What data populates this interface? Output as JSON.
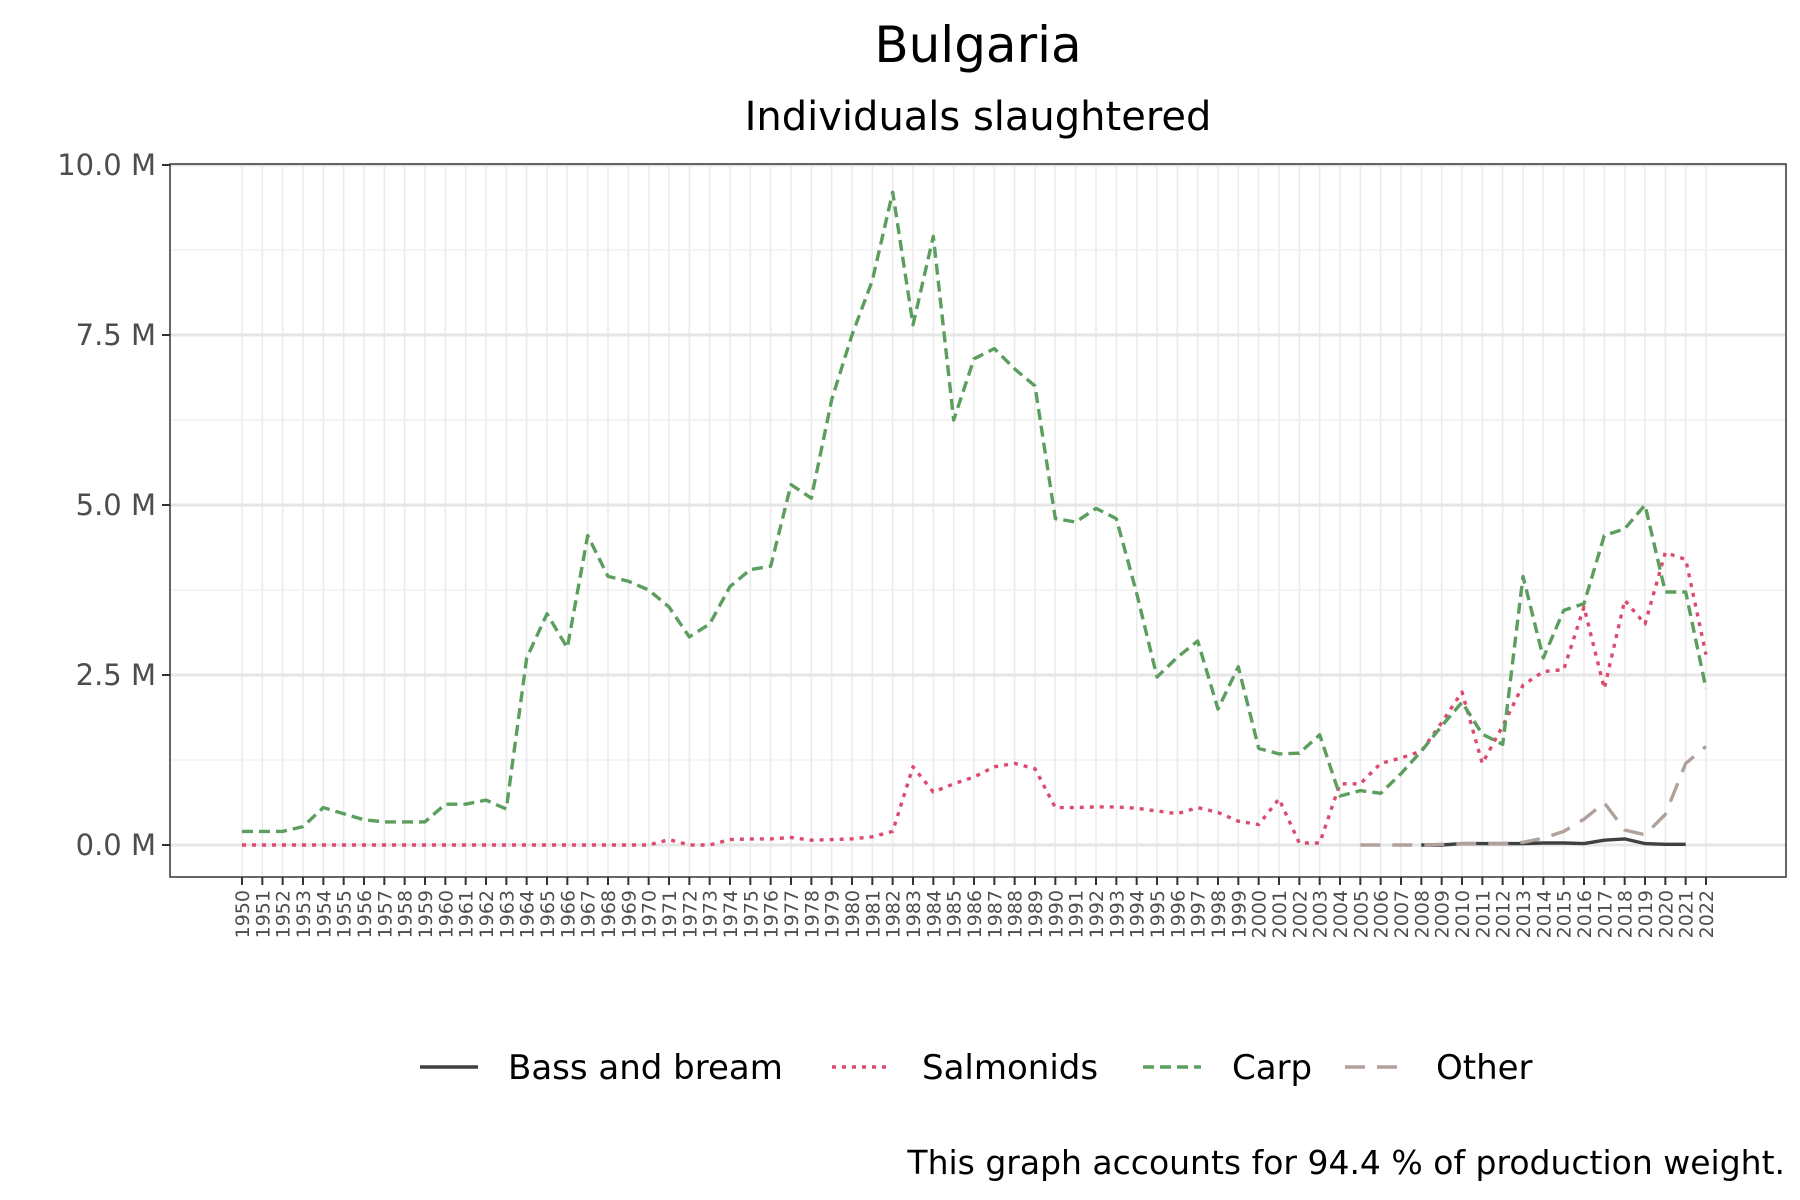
{
  "chart_data": {
    "type": "line",
    "title": "Bulgaria",
    "subtitle": "Individuals slaughtered",
    "caption": "This graph accounts for 94.4 % of production weight.",
    "ylim": [
      0,
      10000000
    ],
    "yticks": [
      0,
      2500000,
      5000000,
      7500000,
      10000000
    ],
    "ytick_labels": [
      "0.0 M",
      "2.5 M",
      "5.0 M",
      "7.5 M",
      "10.0 M"
    ],
    "x": [
      1950,
      1951,
      1952,
      1953,
      1954,
      1955,
      1956,
      1957,
      1958,
      1959,
      1960,
      1961,
      1962,
      1963,
      1964,
      1965,
      1966,
      1967,
      1968,
      1969,
      1970,
      1971,
      1972,
      1973,
      1974,
      1975,
      1976,
      1977,
      1978,
      1979,
      1980,
      1981,
      1982,
      1983,
      1984,
      1985,
      1986,
      1987,
      1988,
      1989,
      1990,
      1991,
      1992,
      1993,
      1994,
      1995,
      1996,
      1997,
      1998,
      1999,
      2000,
      2001,
      2002,
      2003,
      2004,
      2005,
      2006,
      2007,
      2008,
      2009,
      2010,
      2011,
      2012,
      2013,
      2014,
      2015,
      2016,
      2017,
      2018,
      2019,
      2020,
      2021,
      2022
    ],
    "legend_position": "bottom",
    "grid": true,
    "series": [
      {
        "name": "Bass and bream",
        "color": "#404040",
        "dash": "solid",
        "x": [
          2008,
          2009,
          2010,
          2011,
          2012,
          2013,
          2014,
          2015,
          2016,
          2017,
          2018,
          2019,
          2020,
          2021
        ],
        "values": [
          0,
          0,
          20000,
          20000,
          20000,
          20000,
          30000,
          30000,
          20000,
          70000,
          90000,
          20000,
          10000,
          10000
        ]
      },
      {
        "name": "Salmonids",
        "color": "#dc4b6e",
        "dash": "dotted",
        "x": [
          1950,
          1951,
          1952,
          1953,
          1954,
          1955,
          1956,
          1957,
          1958,
          1959,
          1960,
          1961,
          1962,
          1963,
          1964,
          1965,
          1966,
          1967,
          1968,
          1969,
          1970,
          1971,
          1972,
          1973,
          1974,
          1975,
          1976,
          1977,
          1978,
          1979,
          1980,
          1981,
          1982,
          1983,
          1984,
          1985,
          1986,
          1987,
          1988,
          1989,
          1990,
          1991,
          1992,
          1993,
          1994,
          1995,
          1996,
          1997,
          1998,
          1999,
          2000,
          2001,
          2002,
          2003,
          2004,
          2005,
          2006,
          2007,
          2008,
          2009,
          2010,
          2011,
          2012,
          2013,
          2014,
          2015,
          2016,
          2017,
          2018,
          2019,
          2020,
          2021,
          2022
        ],
        "values": [
          0,
          0,
          0,
          0,
          0,
          0,
          0,
          0,
          0,
          0,
          0,
          0,
          0,
          0,
          0,
          0,
          0,
          0,
          0,
          0,
          0,
          80000,
          0,
          0,
          80000,
          90000,
          90000,
          110000,
          70000,
          80000,
          90000,
          120000,
          200000,
          1150000,
          780000,
          900000,
          1000000,
          1150000,
          1200000,
          1120000,
          550000,
          550000,
          560000,
          560000,
          540000,
          500000,
          460000,
          550000,
          480000,
          350000,
          300000,
          680000,
          30000,
          30000,
          900000,
          900000,
          1200000,
          1280000,
          1380000,
          1800000,
          2250000,
          1200000,
          1750000,
          2350000,
          2550000,
          2580000,
          3500000,
          2300000,
          3600000,
          3250000,
          4300000,
          4200000,
          2800000
        ]
      },
      {
        "name": "Carp",
        "color": "#5b9e5e",
        "dash": "dashed",
        "x": [
          1950,
          1951,
          1952,
          1953,
          1954,
          1955,
          1956,
          1957,
          1958,
          1959,
          1960,
          1961,
          1962,
          1963,
          1964,
          1965,
          1966,
          1967,
          1968,
          1969,
          1970,
          1971,
          1972,
          1973,
          1974,
          1975,
          1976,
          1977,
          1978,
          1979,
          1980,
          1981,
          1982,
          1983,
          1984,
          1985,
          1986,
          1987,
          1988,
          1989,
          1990,
          1991,
          1992,
          1993,
          1994,
          1995,
          1996,
          1997,
          1998,
          1999,
          2000,
          2001,
          2002,
          2003,
          2004,
          2005,
          2006,
          2007,
          2008,
          2009,
          2010,
          2011,
          2012,
          2013,
          2014,
          2015,
          2016,
          2017,
          2018,
          2019,
          2020,
          2021,
          2022
        ],
        "values": [
          200000,
          200000,
          200000,
          270000,
          550000,
          460000,
          370000,
          340000,
          340000,
          340000,
          600000,
          600000,
          660000,
          530000,
          2750000,
          3400000,
          2900000,
          4550000,
          3950000,
          3880000,
          3750000,
          3500000,
          3060000,
          3250000,
          3800000,
          4050000,
          4100000,
          5300000,
          5100000,
          6550000,
          7500000,
          8300000,
          9600000,
          7650000,
          8950000,
          6250000,
          7150000,
          7300000,
          7000000,
          6750000,
          4800000,
          4750000,
          4950000,
          4800000,
          3700000,
          2470000,
          2760000,
          3000000,
          2000000,
          2620000,
          1420000,
          1340000,
          1350000,
          1620000,
          720000,
          800000,
          760000,
          1050000,
          1380000,
          1750000,
          2100000,
          1630000,
          1480000,
          3950000,
          2750000,
          3450000,
          3550000,
          4550000,
          4650000,
          5000000,
          3720000,
          3720000,
          2300000
        ]
      },
      {
        "name": "Other",
        "color": "#b0a19a",
        "dash": "longdash",
        "x": [
          2005,
          2006,
          2007,
          2008,
          2009,
          2010,
          2011,
          2012,
          2013,
          2014,
          2015,
          2016,
          2017,
          2018,
          2019,
          2020,
          2021,
          2022
        ],
        "values": [
          0,
          0,
          0,
          0,
          10000,
          20000,
          20000,
          20000,
          40000,
          100000,
          200000,
          380000,
          620000,
          220000,
          150000,
          450000,
          1200000,
          1450000
        ]
      }
    ]
  }
}
